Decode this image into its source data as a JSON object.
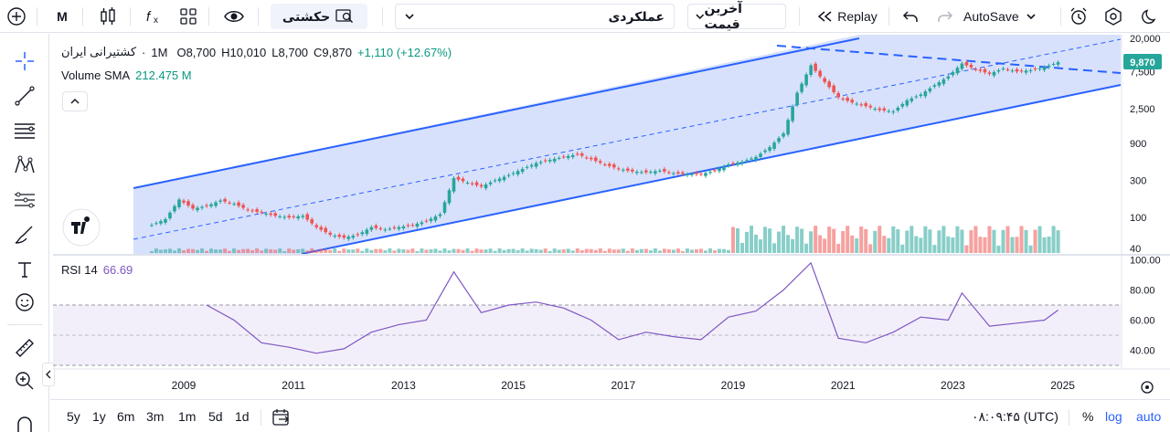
{
  "toolbar": {
    "interval": "M",
    "indicators_label": "حکشتی",
    "symbol_select": "عملکردی",
    "price_type": "آخرین قیمت",
    "replay_label": "Replay",
    "autosave_label": "AutoSave"
  },
  "legend": {
    "symbol": "کشتیرانی ایران",
    "interval": "1M",
    "open": "O8,700",
    "high": "H10,010",
    "low": "L8,700",
    "close": "C9,870",
    "change": "+1,110 (+12.67%)",
    "volume_label": "Volume SMA",
    "volume_value": "212.475 M",
    "rsi_label": "RSI 14",
    "rsi_value": "66.69"
  },
  "price_axis": {
    "ticks": [
      "20,000",
      "7,500",
      "2,500",
      "900",
      "300",
      "100",
      "40"
    ],
    "last_price": "9,870"
  },
  "rsi_axis": {
    "ticks": [
      "100.00",
      "80.00",
      "60.00",
      "40.00"
    ]
  },
  "time_axis": {
    "ticks": [
      "2009",
      "2011",
      "2013",
      "2015",
      "2017",
      "2019",
      "2021",
      "2023",
      "2025"
    ]
  },
  "bottom": {
    "ranges": [
      "5y",
      "1y",
      "6m",
      "3m",
      "1m",
      "5d",
      "1d"
    ],
    "clock": "۰۸:۰۹:۴۵ (UTC)",
    "percent": "%",
    "log": "log",
    "auto": "auto"
  },
  "colors": {
    "up": "#26a69a",
    "down": "#ef5350",
    "channel": "#2962ff",
    "channel_fill": "#d1dcfb",
    "rsi": "#7e57c2",
    "rsi_fill": "#f3effa",
    "accent": "#2962ff"
  },
  "chart_data": {
    "type": "candlestick",
    "interval": "1M",
    "scale": "log",
    "close_series": [
      [
        "2008-06",
        80
      ],
      [
        "2008-09",
        95
      ],
      [
        "2008-12",
        170
      ],
      [
        "2009-03",
        130
      ],
      [
        "2009-06",
        140
      ],
      [
        "2009-09",
        165
      ],
      [
        "2009-12",
        150
      ],
      [
        "2010-03",
        125
      ],
      [
        "2010-06",
        115
      ],
      [
        "2010-09",
        105
      ],
      [
        "2010-12",
        100
      ],
      [
        "2011-03",
        105
      ],
      [
        "2011-06",
        75
      ],
      [
        "2011-09",
        60
      ],
      [
        "2011-12",
        55
      ],
      [
        "2012-03",
        60
      ],
      [
        "2012-06",
        75
      ],
      [
        "2012-09",
        70
      ],
      [
        "2012-12",
        75
      ],
      [
        "2013-03",
        80
      ],
      [
        "2013-06",
        90
      ],
      [
        "2013-09",
        110
      ],
      [
        "2013-12",
        320
      ],
      [
        "2014-03",
        280
      ],
      [
        "2014-06",
        250
      ],
      [
        "2014-09",
        300
      ],
      [
        "2014-12",
        350
      ],
      [
        "2015-03",
        420
      ],
      [
        "2015-06",
        500
      ],
      [
        "2015-09",
        550
      ],
      [
        "2015-12",
        600
      ],
      [
        "2016-03",
        650
      ],
      [
        "2016-06",
        560
      ],
      [
        "2016-09",
        480
      ],
      [
        "2016-12",
        420
      ],
      [
        "2017-03",
        390
      ],
      [
        "2017-06",
        380
      ],
      [
        "2017-09",
        400
      ],
      [
        "2017-12",
        370
      ],
      [
        "2018-03",
        360
      ],
      [
        "2018-06",
        360
      ],
      [
        "2018-09",
        400
      ],
      [
        "2018-12",
        480
      ],
      [
        "2019-03",
        520
      ],
      [
        "2019-06",
        600
      ],
      [
        "2019-09",
        800
      ],
      [
        "2019-12",
        1200
      ],
      [
        "2020-03",
        4000
      ],
      [
        "2020-06",
        9000
      ],
      [
        "2020-09",
        5500
      ],
      [
        "2020-12",
        3500
      ],
      [
        "2021-03",
        3000
      ],
      [
        "2021-06",
        2700
      ],
      [
        "2021-09",
        2400
      ],
      [
        "2021-12",
        2300
      ],
      [
        "2022-03",
        3200
      ],
      [
        "2022-06",
        3800
      ],
      [
        "2022-09",
        5000
      ],
      [
        "2022-12",
        6500
      ],
      [
        "2023-03",
        9500
      ],
      [
        "2023-06",
        8000
      ],
      [
        "2023-09",
        7000
      ],
      [
        "2023-12",
        8200
      ],
      [
        "2024-03",
        7500
      ],
      [
        "2024-06",
        7800
      ],
      [
        "2024-09",
        8500
      ],
      [
        "2024-12",
        9870
      ]
    ],
    "rsi_series": [
      [
        "2009-06",
        70
      ],
      [
        "2009-12",
        60
      ],
      [
        "2010-06",
        45
      ],
      [
        "2010-12",
        42
      ],
      [
        "2011-06",
        38
      ],
      [
        "2011-12",
        41
      ],
      [
        "2012-06",
        52
      ],
      [
        "2012-12",
        57
      ],
      [
        "2013-06",
        60
      ],
      [
        "2013-12",
        92
      ],
      [
        "2014-06",
        65
      ],
      [
        "2014-12",
        70
      ],
      [
        "2015-06",
        72
      ],
      [
        "2015-12",
        68
      ],
      [
        "2016-06",
        60
      ],
      [
        "2016-12",
        47
      ],
      [
        "2017-06",
        52
      ],
      [
        "2017-12",
        49
      ],
      [
        "2018-06",
        47
      ],
      [
        "2018-12",
        62
      ],
      [
        "2019-06",
        66
      ],
      [
        "2019-12",
        80
      ],
      [
        "2020-06",
        98
      ],
      [
        "2020-12",
        48
      ],
      [
        "2021-06",
        45
      ],
      [
        "2021-12",
        52
      ],
      [
        "2022-06",
        62
      ],
      [
        "2022-12",
        60
      ],
      [
        "2023-03",
        78
      ],
      [
        "2023-09",
        56
      ],
      [
        "2024-03",
        58
      ],
      [
        "2024-09",
        60
      ],
      [
        "2024-12",
        66.69
      ]
    ],
    "rsi_range": [
      0,
      100
    ],
    "rsi_bands": [
      30,
      70
    ]
  }
}
